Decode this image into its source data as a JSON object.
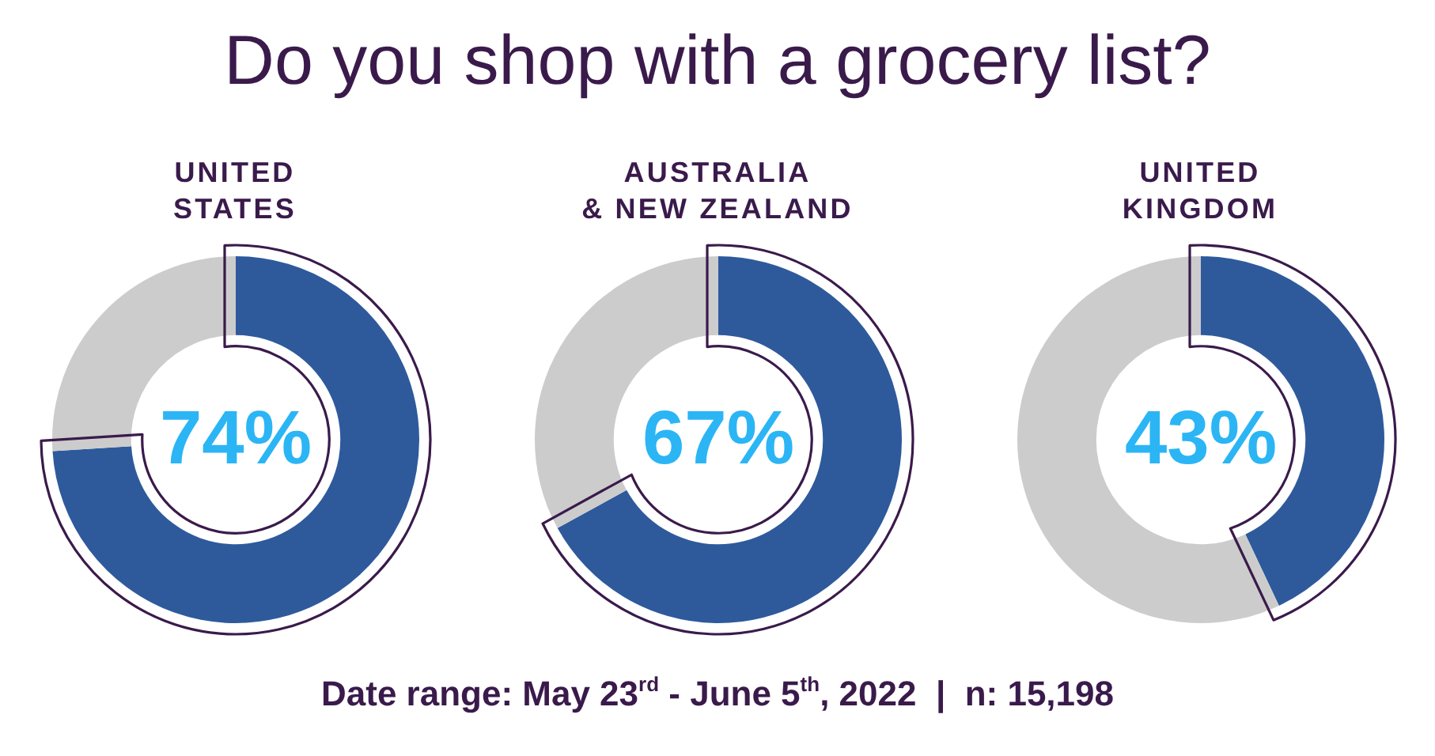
{
  "chart_data": [
    {
      "type": "other",
      "title": "Do you shop with a grocery list?"
    },
    {
      "type": "donut",
      "title": "UNITED\nSTATES",
      "categories": [
        null,
        null
      ],
      "values": [
        74,
        26
      ],
      "colors": [
        "#2e5a9c",
        "#cccccc"
      ],
      "value_labels": [
        "74%",
        null
      ]
    },
    {
      "type": "donut",
      "title": "AUSTRALIA\n& NEW ZEALAND",
      "categories": [
        null,
        null
      ],
      "values": [
        67,
        33
      ],
      "colors": [
        "#2e5a9c",
        "#cccccc"
      ],
      "value_labels": [
        "67%",
        null
      ]
    },
    {
      "type": "donut",
      "title": "UNITED\nKINGDOM",
      "categories": [
        null,
        null
      ],
      "values": [
        43,
        57
      ],
      "colors": [
        "#2e5a9c",
        "#cccccc"
      ],
      "value_labels": [
        "43%",
        null
      ]
    },
    {
      "type": "other",
      "annotations": [
        "Date range: May 23$^{rd}$ - June 5$^{th}$, 2022  |  n: 15,198"
      ]
    }
  ]
}
